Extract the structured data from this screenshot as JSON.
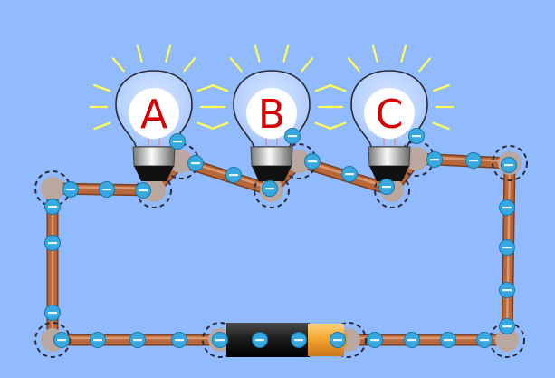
{
  "canvas": {
    "background": "#92baff"
  },
  "colors": {
    "wire": "#b8673a",
    "wire_highlight": "#e0a27c",
    "electron": "#38a8e0",
    "electron_sign": "#e9f6ff",
    "junction": "#b9a7a0",
    "glass": "#ffffff",
    "glow": "#ffff55",
    "bulb_text": "#d60000",
    "battery_body": "#1e1e1e",
    "battery_cap": "#f4a12e"
  },
  "bulbs": [
    {
      "id": "bulb-a",
      "label": "A"
    },
    {
      "id": "bulb-b",
      "label": "B"
    },
    {
      "id": "bulb-c",
      "label": "C"
    }
  ],
  "battery": {
    "icon": "battery-icon"
  },
  "electrons": {
    "icon": "electron-icon",
    "sign": "−"
  }
}
